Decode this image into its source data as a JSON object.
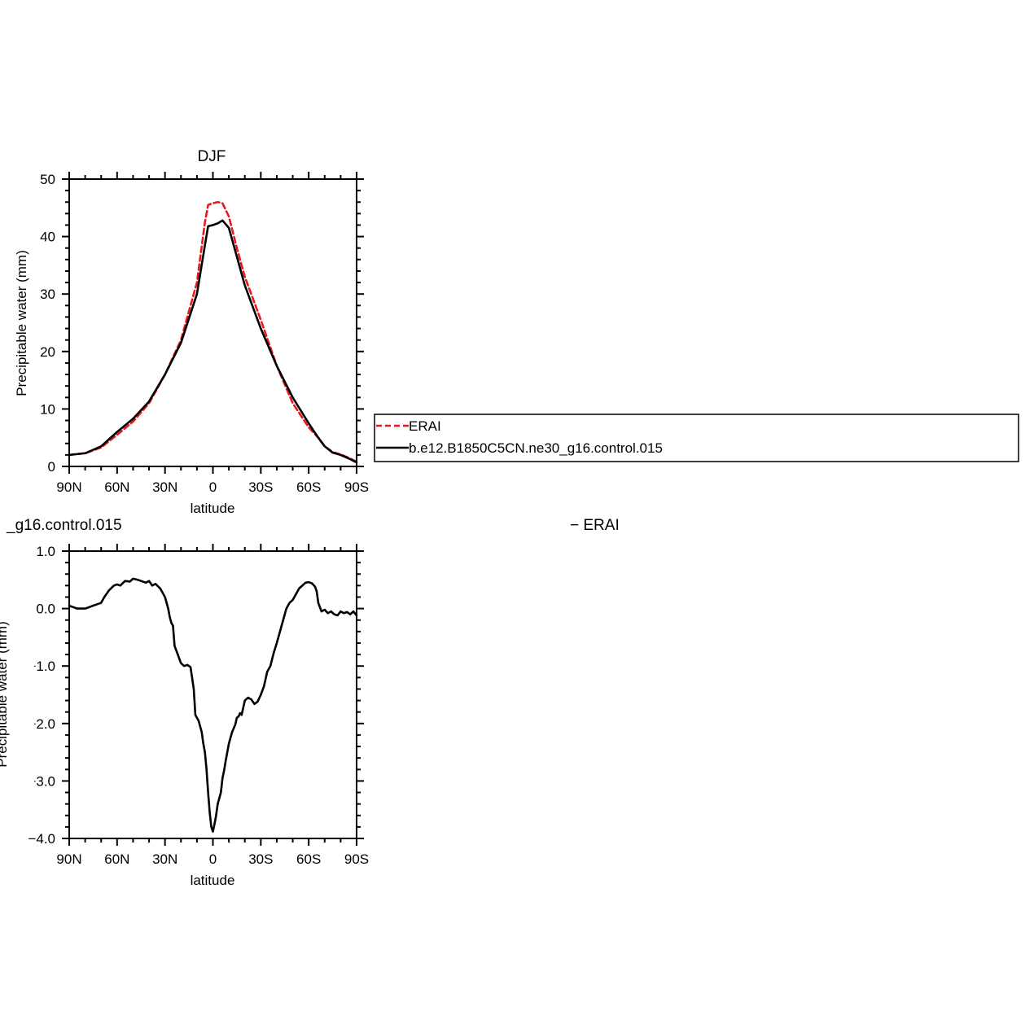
{
  "chart_data": [
    {
      "type": "line",
      "title": "DJF",
      "xlabel": "latitude",
      "ylabel": "Precipitable water (mm)",
      "x_ticks": [
        {
          "value": -90,
          "label": "90N"
        },
        {
          "value": -60,
          "label": "60N"
        },
        {
          "value": -30,
          "label": "30N"
        },
        {
          "value": 0,
          "label": "0"
        },
        {
          "value": 30,
          "label": "30S"
        },
        {
          "value": 60,
          "label": "60S"
        },
        {
          "value": 90,
          "label": "90S"
        }
      ],
      "xlim": [
        -90,
        90
      ],
      "ylim": [
        0,
        50
      ],
      "y_ticks": [
        {
          "value": 0,
          "label": "0"
        },
        {
          "value": 10,
          "label": "10"
        },
        {
          "value": 20,
          "label": "20"
        },
        {
          "value": 30,
          "label": "30"
        },
        {
          "value": 40,
          "label": "40"
        },
        {
          "value": 50,
          "label": "50"
        }
      ],
      "grid": false,
      "series": [
        {
          "name": "ERAI",
          "color": "#e8191c",
          "dash": "dashed",
          "x": [
            -90,
            -80,
            -70,
            -60,
            -50,
            -40,
            -30,
            -20,
            -10,
            -5,
            -3,
            0,
            3,
            6,
            10,
            15,
            20,
            30,
            40,
            50,
            60,
            66,
            70,
            75,
            80,
            85,
            90
          ],
          "y": [
            2.0,
            2.3,
            3.3,
            5.5,
            7.8,
            11.0,
            16.0,
            22.0,
            32.0,
            42.5,
            45.5,
            45.8,
            46.0,
            45.8,
            43.5,
            38.0,
            33.0,
            25.5,
            17.5,
            11.0,
            6.8,
            5.0,
            3.5,
            2.5,
            2.1,
            1.5,
            0.8
          ]
        },
        {
          "name": "b.e12.B1850C5CN.ne30_g16.control.015",
          "color": "#000000",
          "dash": "solid",
          "x": [
            -90,
            -80,
            -70,
            -60,
            -50,
            -40,
            -30,
            -20,
            -10,
            -5,
            -3,
            0,
            3,
            6,
            10,
            15,
            20,
            30,
            40,
            50,
            60,
            66,
            70,
            75,
            80,
            85,
            90
          ],
          "y": [
            2.0,
            2.3,
            3.5,
            6.0,
            8.3,
            11.3,
            16.0,
            21.5,
            30.0,
            38.5,
            41.8,
            42.0,
            42.3,
            42.8,
            41.5,
            36.5,
            31.5,
            24.0,
            17.5,
            12.0,
            7.5,
            5.0,
            3.5,
            2.4,
            2.0,
            1.4,
            0.7
          ]
        }
      ],
      "legend": {
        "position": "right",
        "entries": [
          "ERAI",
          "b.e12.B1850C5CN.ne30_g16.control.015"
        ]
      }
    },
    {
      "type": "line",
      "title": "_g16.control.015",
      "title_right": "− ERAI",
      "xlabel": "latitude",
      "ylabel": "Precipitable water (mm)",
      "x_ticks": [
        {
          "value": -90,
          "label": "90N"
        },
        {
          "value": -60,
          "label": "60N"
        },
        {
          "value": -30,
          "label": "30N"
        },
        {
          "value": 0,
          "label": "0"
        },
        {
          "value": 30,
          "label": "30S"
        },
        {
          "value": 60,
          "label": "60S"
        },
        {
          "value": 90,
          "label": "90S"
        }
      ],
      "xlim": [
        -90,
        90
      ],
      "ylim": [
        -4.0,
        1.0
      ],
      "y_ticks": [
        {
          "value": -4.0,
          "label": "−4.0"
        },
        {
          "value": -3.0,
          "label": "−3.0"
        },
        {
          "value": -2.0,
          "label": "−2.0"
        },
        {
          "value": -1.0,
          "label": "−1.0"
        },
        {
          "value": 0.0,
          "label": "0.0"
        },
        {
          "value": 1.0,
          "label": "1.0"
        }
      ],
      "grid": false,
      "series": [
        {
          "color": "#000000",
          "dash": "solid",
          "x": [
            -90,
            -85,
            -80,
            -75,
            -70,
            -68,
            -65,
            -62,
            -60,
            -58,
            -55,
            -52,
            -50,
            -47,
            -45,
            -42,
            -40,
            -38,
            -36,
            -33,
            -30,
            -28,
            -27,
            -26,
            -25,
            -24,
            -22,
            -20,
            -18,
            -16,
            -14,
            -12,
            -11,
            -10,
            -9,
            -8,
            -7,
            -6,
            -5,
            -4,
            -3,
            -2,
            -1,
            0,
            1,
            2,
            3,
            4,
            5,
            6,
            7,
            8,
            10,
            11,
            12,
            14,
            15,
            16,
            17,
            18,
            20,
            22,
            24,
            26,
            28,
            30,
            32,
            34,
            36,
            38,
            40,
            42,
            43,
            44,
            46,
            48,
            50,
            52,
            54,
            56,
            58,
            60,
            62,
            64,
            65,
            66,
            68,
            70,
            72,
            74,
            76,
            78,
            80,
            82,
            84,
            86,
            88,
            90
          ],
          "y": [
            0.05,
            0.0,
            0.0,
            0.05,
            0.1,
            0.2,
            0.32,
            0.4,
            0.42,
            0.4,
            0.48,
            0.47,
            0.52,
            0.5,
            0.48,
            0.45,
            0.48,
            0.4,
            0.43,
            0.35,
            0.2,
            0.0,
            -0.15,
            -0.25,
            -0.3,
            -0.65,
            -0.8,
            -0.95,
            -1.0,
            -0.98,
            -1.02,
            -1.4,
            -1.85,
            -1.9,
            -1.95,
            -2.05,
            -2.15,
            -2.35,
            -2.5,
            -2.8,
            -3.2,
            -3.55,
            -3.8,
            -3.88,
            -3.75,
            -3.6,
            -3.4,
            -3.3,
            -3.2,
            -2.95,
            -2.82,
            -2.65,
            -2.35,
            -2.25,
            -2.15,
            -2.02,
            -1.9,
            -1.88,
            -1.82,
            -1.85,
            -1.6,
            -1.55,
            -1.58,
            -1.66,
            -1.62,
            -1.5,
            -1.35,
            -1.1,
            -1.0,
            -0.78,
            -0.6,
            -0.4,
            -0.3,
            -0.2,
            0.0,
            0.1,
            0.15,
            0.25,
            0.35,
            0.4,
            0.45,
            0.46,
            0.44,
            0.38,
            0.3,
            0.1,
            -0.05,
            -0.02,
            -0.08,
            -0.05,
            -0.1,
            -0.12,
            -0.05,
            -0.08,
            -0.06,
            -0.1,
            -0.05,
            -0.12
          ]
        }
      ]
    }
  ]
}
